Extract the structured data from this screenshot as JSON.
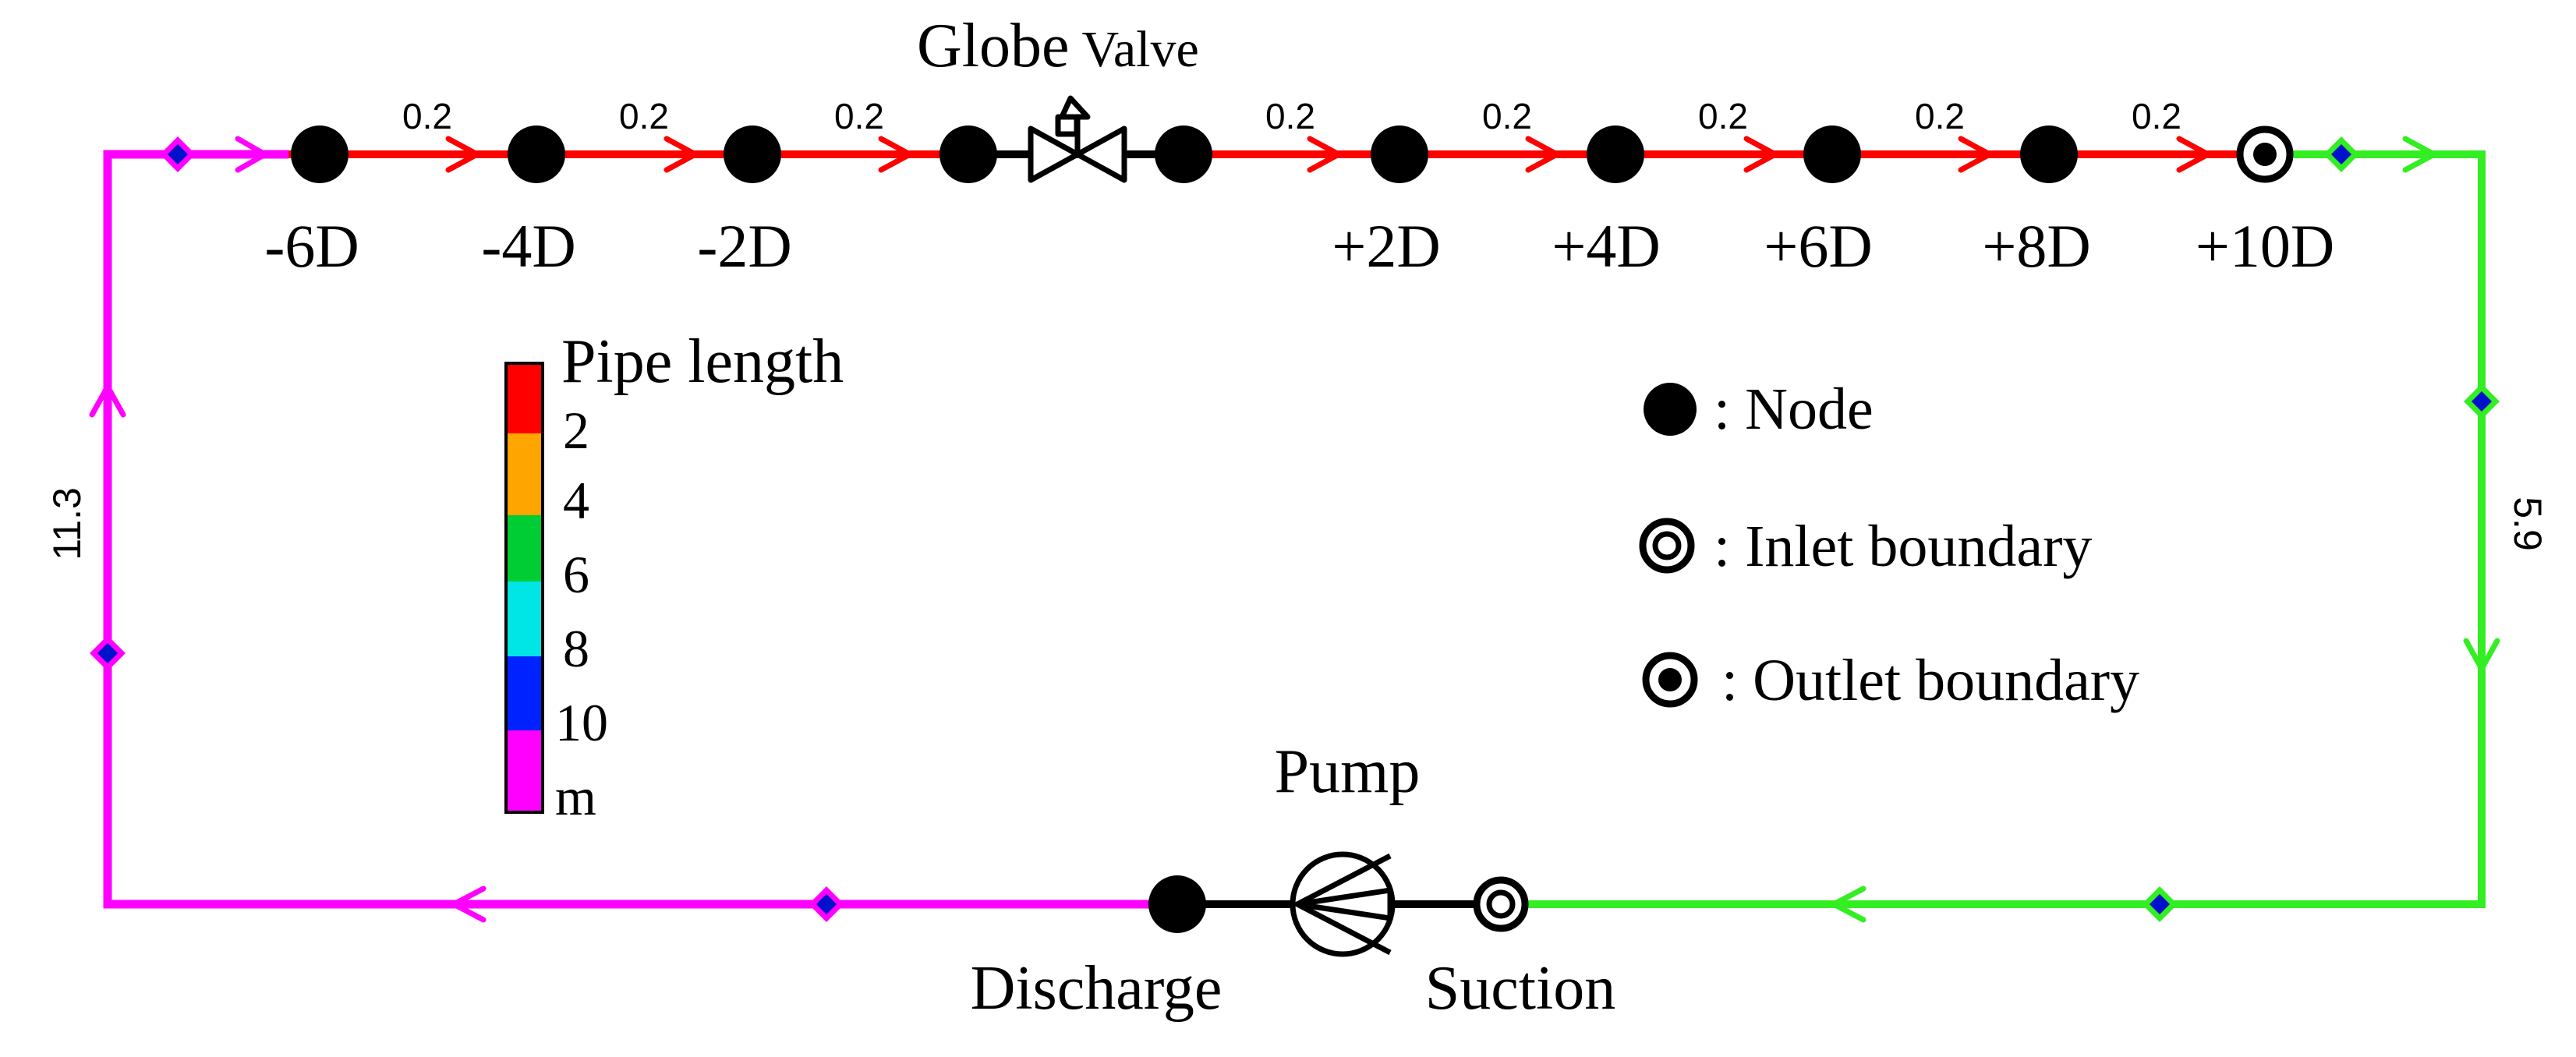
{
  "valve": {
    "title_main": "Globe",
    "title_sub": "Valve"
  },
  "segment_lengths": [
    "0.2",
    "0.2",
    "0.2",
    "0.2",
    "0.2",
    "0.2",
    "0.2",
    "0.2"
  ],
  "positions": [
    "-6D",
    "-4D",
    "-2D",
    "+2D",
    "+4D",
    "+6D",
    "+8D",
    "+10D"
  ],
  "colorbar": {
    "title": "Pipe length",
    "ticks": [
      "2",
      "4",
      "6",
      "8",
      "10"
    ],
    "unit": "m",
    "colors": [
      "#ff0000",
      "#ffa500",
      "#00cc33",
      "#00e5e5",
      "#0022ff",
      "#ff00ff"
    ]
  },
  "legend": {
    "node": ": Node",
    "inlet": ": Inlet boundary",
    "outlet": ": Outlet boundary"
  },
  "pipe_lengths": {
    "left": "11.3",
    "right": "5.9"
  },
  "pump": {
    "title": "Pump",
    "discharge": "Discharge",
    "suction": "Suction"
  },
  "colors": {
    "red_pipe": "#ff0000",
    "green_pipe": "#33ee22",
    "magenta_pipe": "#ff00ff",
    "node": "#000000",
    "marker": "#0011cc"
  }
}
